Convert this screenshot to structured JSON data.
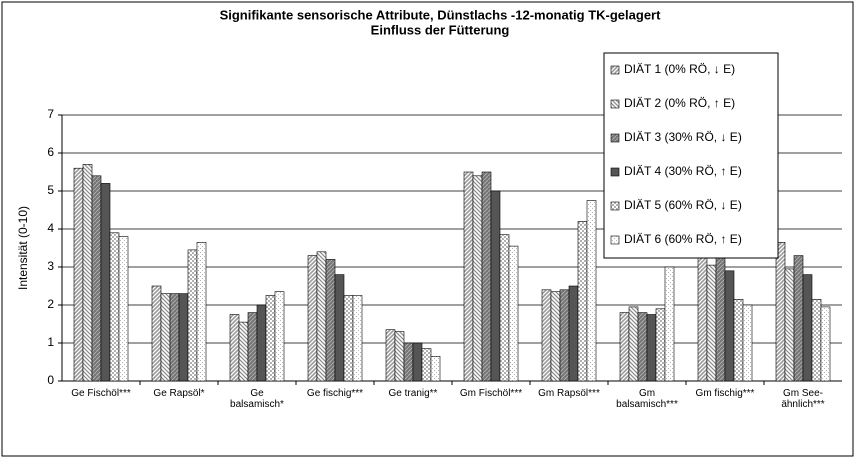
{
  "chart_data": {
    "type": "bar",
    "title": [
      "Signifikante sensorische Attribute,  Dünstlachs -12-monatig TK-gelagert",
      "Einfluss der Fütterung"
    ],
    "y_label": "Intensität (0-10)",
    "categories": [
      "Ge Fischöl***",
      "Ge Rapsöl*",
      "Ge\nbalsamisch*",
      "Ge fischig***",
      "Ge tranig**",
      "Gm Fischöl***",
      "Gm Rapsöl***",
      "Gm\nbalsamisch***",
      "Gm fischig***",
      "Gm See-\nähnlich***"
    ],
    "series": [
      {
        "name": "DIÄT 1 (0% RÖ, ↓ E)",
        "color": "#9a9a9a",
        "pattern": "diag-wide",
        "values": [
          5.6,
          2.5,
          1.75,
          3.3,
          1.35,
          5.5,
          2.4,
          1.8,
          3.35,
          3.65
        ]
      },
      {
        "name": "DIÄT 2 (0% RÖ, ↑ E)",
        "color": "#8a8a8a",
        "pattern": "diag-back",
        "values": [
          5.7,
          2.3,
          1.55,
          3.4,
          1.3,
          5.4,
          2.35,
          1.95,
          3.05,
          2.95
        ]
      },
      {
        "name": "DIÄT 3 (30% RÖ, ↓ E)",
        "color": "#777777",
        "pattern": "dense",
        "values": [
          5.4,
          2.3,
          1.8,
          3.2,
          1.0,
          5.5,
          2.4,
          1.8,
          3.3,
          3.3
        ]
      },
      {
        "name": "DIÄT 4 (30% RÖ, ↑ E)",
        "color": "#555555",
        "pattern": "solid",
        "values": [
          5.2,
          2.3,
          2.0,
          2.8,
          1.0,
          5.0,
          2.5,
          1.75,
          2.9,
          2.8
        ]
      },
      {
        "name": "DIÄT 5 (60% RÖ, ↓ E)",
        "color": "#b0b0b0",
        "pattern": "checker",
        "values": [
          3.9,
          3.45,
          2.25,
          2.25,
          0.85,
          3.85,
          4.2,
          1.9,
          2.15,
          2.15
        ]
      },
      {
        "name": "DIÄT 6 (60% RÖ, ↑ E)",
        "color": "#b5b5b5",
        "pattern": "dots",
        "values": [
          3.8,
          3.65,
          2.35,
          2.25,
          0.65,
          3.55,
          4.75,
          3.0,
          2.0,
          1.95
        ]
      }
    ],
    "ylim": [
      0,
      7
    ],
    "yticks": [
      0,
      1,
      2,
      3,
      4,
      5,
      6,
      7
    ],
    "grid": true,
    "legend": "upper right"
  }
}
